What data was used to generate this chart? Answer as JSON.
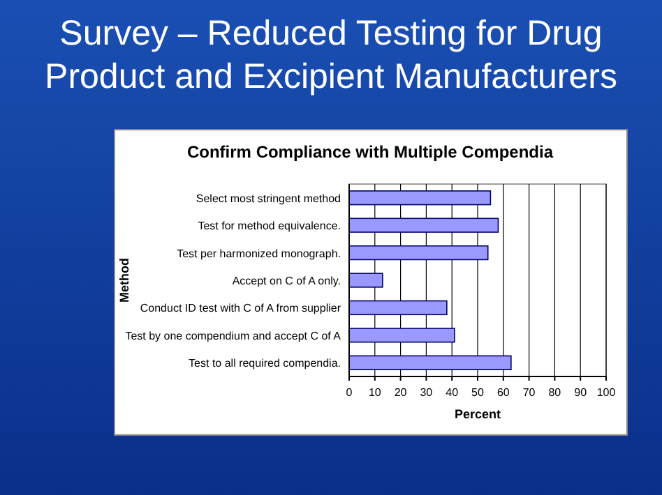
{
  "chart_data": {
    "type": "bar",
    "orientation": "horizontal",
    "title": "Survey – Reduced Testing for Drug Product and Excipient Manufacturers",
    "subtitle": "Confirm Compliance with Multiple Compendia",
    "xlabel": "Percent",
    "ylabel": "Method",
    "categories": [
      "Select most stringent method",
      "Test for method equivalence.",
      "Test per harmonized monograph.",
      "Accept on C of A only.",
      "Conduct ID test with C of A from supplier",
      "Test by one compendium and accept C of A",
      "Test to all required compendia."
    ],
    "values": [
      55,
      58,
      54,
      13,
      38,
      41,
      63
    ],
    "color": "#9999ff",
    "xlim": [
      0,
      100
    ],
    "xticks": [
      0,
      10,
      20,
      30,
      40,
      50,
      60,
      70,
      80,
      90,
      100
    ],
    "grid": "x"
  }
}
